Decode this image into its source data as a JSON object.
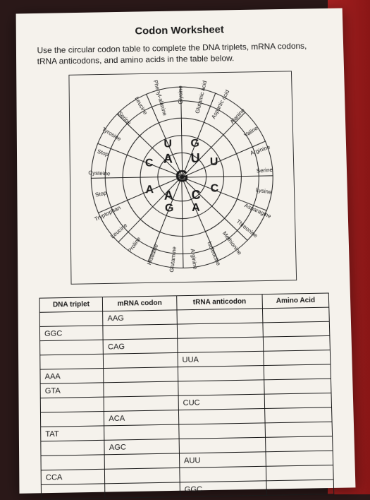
{
  "title": "Codon Worksheet",
  "instructions": "Use the circular codon table to complete the DNA triplets, mRNA codons, tRNA anticodons, and amino acids in the table below.",
  "wheel": {
    "center": "G",
    "inner_quad": [
      "A",
      "U",
      "C",
      "A"
    ],
    "mid_ring": [
      "G",
      "U",
      "C",
      "A",
      "G",
      "A",
      "C",
      "U"
    ],
    "amino_acids_outer": [
      "Glycine",
      "Glutamic acid",
      "Aspartic acid",
      "Alanine",
      "Valine",
      "Arginine",
      "Serine",
      "Lysine",
      "Asparagine",
      "Threonine",
      "Methionine",
      "Isoleucine",
      "Arginine",
      "Glutamine",
      "Histidine",
      "Proline",
      "Leucine",
      "Tryptophan",
      "Stop",
      "Cysteine",
      "Stop",
      "Tyrosine",
      "Serine",
      "Leucine",
      "Phenyl-alanine"
    ],
    "codon_ring_sample": [
      "UCAG",
      "UC",
      "AG",
      "UCAG",
      "G",
      "ACU",
      "G",
      "ACU",
      "GACU",
      "GA",
      "CU",
      "G",
      "AC",
      "G"
    ]
  },
  "table": {
    "headers": [
      "DNA triplet",
      "mRNA codon",
      "tRNA anticodon",
      "Amino Acid"
    ],
    "rows": [
      [
        "",
        "AAG",
        "",
        ""
      ],
      [
        "GGC",
        "",
        "",
        ""
      ],
      [
        "",
        "CAG",
        "",
        ""
      ],
      [
        "",
        "",
        "UUA",
        ""
      ],
      [
        "AAA",
        "",
        "",
        ""
      ],
      [
        "GTA",
        "",
        "",
        ""
      ],
      [
        "",
        "",
        "CUC",
        ""
      ],
      [
        "",
        "ACA",
        "",
        ""
      ],
      [
        "TAT",
        "",
        "",
        ""
      ],
      [
        "",
        "AGC",
        "",
        ""
      ],
      [
        "",
        "",
        "AUU",
        ""
      ],
      [
        "CCA",
        "",
        "",
        ""
      ],
      [
        "",
        "",
        "GGC",
        ""
      ]
    ]
  }
}
